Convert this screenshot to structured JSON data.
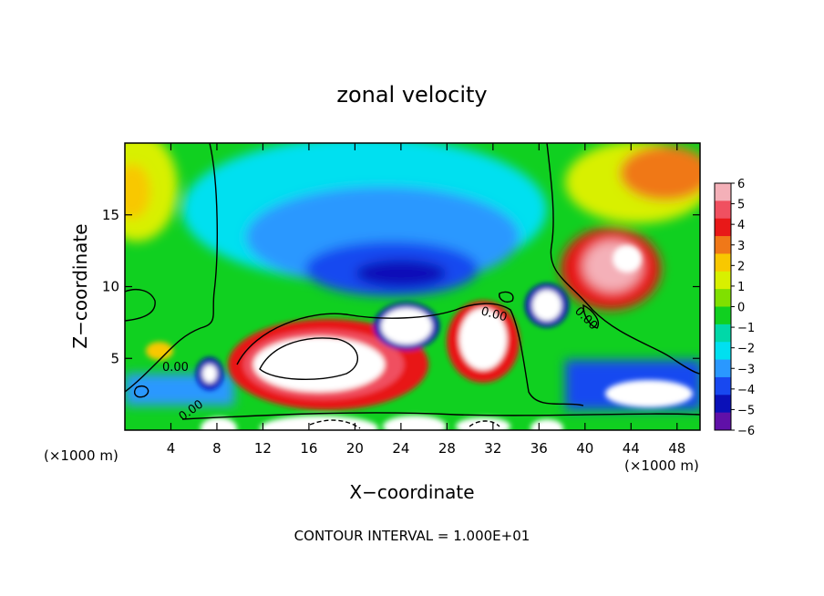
{
  "chart_data": {
    "type": "heatmap",
    "title": "zonal velocity",
    "xlabel": "X−coordinate",
    "ylabel": "Z−coordinate",
    "x_unit_left": "(×1000 m)",
    "x_unit_right": "(×1000 m)",
    "xlim": [
      0,
      50
    ],
    "ylim": [
      0,
      20
    ],
    "x_ticks": [
      4,
      8,
      12,
      16,
      20,
      24,
      28,
      32,
      36,
      40,
      44,
      48
    ],
    "y_ticks": [
      5,
      10,
      15
    ],
    "colorbar": {
      "levels": [
        6,
        5,
        4,
        3,
        2,
        1,
        0,
        -1,
        -2,
        -3,
        -4,
        -5,
        -6
      ],
      "level_labels": [
        "6",
        "5",
        "4",
        "3",
        "2",
        "1",
        "0",
        "−1",
        "−2",
        "−3",
        "−4",
        "−5",
        "−6"
      ],
      "colors": [
        "#f4b0b8",
        "#f05060",
        "#e81818",
        "#f07818",
        "#f8c800",
        "#d8f000",
        "#80e000",
        "#10d020",
        "#00d8a8",
        "#00e0f0",
        "#2a98ff",
        "#1848f0",
        "#0a10b8",
        "#6010a8"
      ]
    },
    "contour_labels": [
      "0.00",
      "0.00",
      "0.00",
      "0.00"
    ],
    "footer": "CONTOUR INTERVAL = 1.000E+01"
  }
}
